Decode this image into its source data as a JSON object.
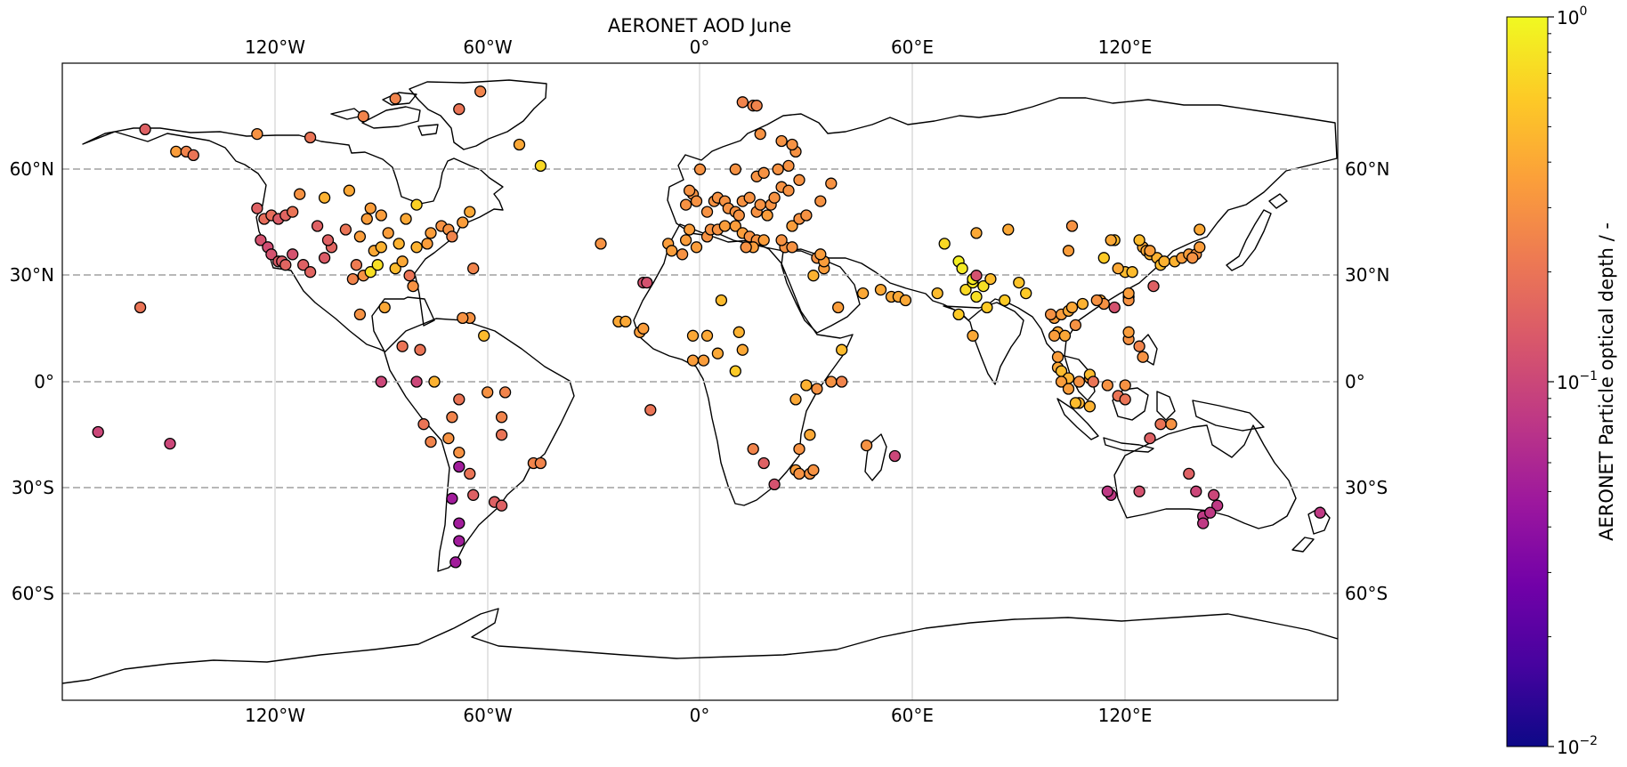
{
  "chart_data": {
    "type": "scatter",
    "title": "AERONET AOD June",
    "projection": "PlateCarree",
    "extent": {
      "lon": [
        -180,
        180
      ],
      "lat": [
        -90,
        90
      ]
    },
    "x_ticks": [
      "120°W",
      "60°W",
      "0°",
      "60°E",
      "120°E"
    ],
    "x_tick_values": [
      -120,
      -60,
      0,
      60,
      120
    ],
    "y_ticks": [
      "60°N",
      "30°N",
      "0°",
      "30°S",
      "60°S"
    ],
    "y_tick_values": [
      60,
      30,
      0,
      -30,
      -60
    ],
    "gridlines": {
      "meridians": "solid light grey",
      "parallels": "dashed grey"
    },
    "colorbar": {
      "label": "AERONET Particle optical depth / -",
      "cmap": "plasma",
      "scale": "log",
      "range": [
        0.01,
        1
      ],
      "ticks": [
        {
          "value": 1,
          "base": "10",
          "exp": "0"
        },
        {
          "value": 0.1,
          "base": "10",
          "exp": "−1"
        },
        {
          "value": 0.01,
          "base": "10",
          "exp": "−2"
        }
      ]
    },
    "colormap_stops": [
      "#0d0887",
      "#46039f",
      "#7201a8",
      "#9c179e",
      "#bd3786",
      "#d8576b",
      "#ed7953",
      "#fb9f3a",
      "#fdca26",
      "#f0f921"
    ],
    "stations": [
      [
        -156.6,
        71.3,
        0.15
      ],
      [
        -147.9,
        65,
        0.35
      ],
      [
        -145,
        65,
        0.25
      ],
      [
        -143,
        64,
        0.2
      ],
      [
        -125,
        49,
        0.15
      ],
      [
        -123,
        46,
        0.18
      ],
      [
        -121,
        47,
        0.18
      ],
      [
        -119,
        46,
        0.14
      ],
      [
        -117,
        47,
        0.16
      ],
      [
        -115,
        48,
        0.2
      ],
      [
        -113,
        53,
        0.3
      ],
      [
        -124,
        40,
        0.12
      ],
      [
        -122,
        38,
        0.11
      ],
      [
        -121,
        36,
        0.12
      ],
      [
        -119,
        34,
        0.14
      ],
      [
        -118,
        34,
        0.14
      ],
      [
        -117,
        33,
        0.16
      ],
      [
        -115,
        36,
        0.12
      ],
      [
        -112,
        33,
        0.15
      ],
      [
        -110,
        31,
        0.16
      ],
      [
        -106,
        35,
        0.14
      ],
      [
        -104,
        38,
        0.16
      ],
      [
        -105,
        40,
        0.15
      ],
      [
        -108,
        44,
        0.15
      ],
      [
        -100,
        43,
        0.2
      ],
      [
        -97,
        33,
        0.22
      ],
      [
        -98,
        29,
        0.25
      ],
      [
        -95,
        30,
        0.3
      ],
      [
        -92,
        37,
        0.4
      ],
      [
        -90,
        38,
        0.45
      ],
      [
        -88,
        42,
        0.35
      ],
      [
        -85,
        39,
        0.45
      ],
      [
        -86,
        32,
        0.5
      ],
      [
        -84,
        34,
        0.4
      ],
      [
        -80,
        38,
        0.45
      ],
      [
        -77,
        39,
        0.35
      ],
      [
        -76,
        42,
        0.35
      ],
      [
        -73,
        44,
        0.3
      ],
      [
        -71,
        43,
        0.3
      ],
      [
        -70,
        41,
        0.25
      ],
      [
        -81,
        27,
        0.3
      ],
      [
        -82,
        30,
        0.2
      ],
      [
        -93,
        31,
        0.75
      ],
      [
        -91,
        33,
        0.75
      ],
      [
        -96,
        41,
        0.35
      ],
      [
        -94,
        46,
        0.35
      ],
      [
        -90,
        47,
        0.35
      ],
      [
        -83,
        46,
        0.4
      ],
      [
        -80,
        50,
        0.65
      ],
      [
        -106,
        52,
        0.45
      ],
      [
        -99,
        54,
        0.4
      ],
      [
        -93,
        49,
        0.35
      ],
      [
        -67,
        45,
        0.35
      ],
      [
        -65,
        48,
        0.4
      ],
      [
        -96,
        19,
        0.3
      ],
      [
        -89,
        21,
        0.4
      ],
      [
        -125,
        70,
        0.3
      ],
      [
        -110,
        69,
        0.2
      ],
      [
        -95,
        75,
        0.25
      ],
      [
        -86,
        80,
        0.25
      ],
      [
        -62,
        82,
        0.25
      ],
      [
        -68,
        77,
        0.2
      ],
      [
        -51,
        67,
        0.4
      ],
      [
        -45,
        61,
        0.7
      ],
      [
        -158,
        21,
        0.2
      ],
      [
        -149.6,
        -17.5,
        0.1
      ],
      [
        -169.9,
        -14.2,
        0.1
      ],
      [
        -84,
        10,
        0.2
      ],
      [
        -79,
        9,
        0.2
      ],
      [
        -75,
        0,
        0.45
      ],
      [
        -80,
        0,
        0.1
      ],
      [
        -90,
        0,
        0.1
      ],
      [
        -78,
        -12,
        0.2
      ],
      [
        -76,
        -17,
        0.25
      ],
      [
        -71,
        -16,
        0.3
      ],
      [
        -68,
        -20,
        0.3
      ],
      [
        -68,
        -24,
        0.05
      ],
      [
        -70,
        -33,
        0.05
      ],
      [
        -68,
        -40,
        0.05
      ],
      [
        -68,
        -45,
        0.05
      ],
      [
        -69,
        -51,
        0.05
      ],
      [
        -65,
        -26,
        0.2
      ],
      [
        -64,
        -32,
        0.15
      ],
      [
        -58,
        -34,
        0.15
      ],
      [
        -56,
        -35,
        0.15
      ],
      [
        -60,
        -3,
        0.3
      ],
      [
        -55,
        -3,
        0.25
      ],
      [
        -56,
        -10,
        0.25
      ],
      [
        -56,
        -15,
        0.2
      ],
      [
        -70,
        -10,
        0.25
      ],
      [
        -68,
        -5,
        0.2
      ],
      [
        -47,
        -23,
        0.25
      ],
      [
        -45,
        -23,
        0.25
      ],
      [
        -61,
        13,
        0.5
      ],
      [
        -65,
        18,
        0.3
      ],
      [
        -67,
        18,
        0.3
      ],
      [
        -64,
        32,
        0.25
      ],
      [
        -28,
        39,
        0.3
      ],
      [
        -16,
        28,
        0.12
      ],
      [
        -15,
        28,
        0.12
      ],
      [
        -17,
        14,
        0.35
      ],
      [
        -16,
        15,
        0.35
      ],
      [
        -23,
        17,
        0.4
      ],
      [
        -21,
        17,
        0.4
      ],
      [
        -14,
        -8,
        0.2
      ],
      [
        -9,
        39,
        0.35
      ],
      [
        -8,
        37,
        0.35
      ],
      [
        -5,
        36,
        0.3
      ],
      [
        -4,
        40,
        0.35
      ],
      [
        -3,
        43,
        0.35
      ],
      [
        -1,
        38,
        0.35
      ],
      [
        2,
        41,
        0.3
      ],
      [
        3,
        43,
        0.3
      ],
      [
        5,
        43,
        0.3
      ],
      [
        7,
        44,
        0.35
      ],
      [
        10,
        44,
        0.35
      ],
      [
        12,
        42,
        0.35
      ],
      [
        14,
        41,
        0.3
      ],
      [
        16,
        40,
        0.3
      ],
      [
        18,
        40,
        0.35
      ],
      [
        15,
        38,
        0.35
      ],
      [
        13,
        38,
        0.3
      ],
      [
        2,
        48,
        0.3
      ],
      [
        4,
        51,
        0.3
      ],
      [
        5,
        52,
        0.3
      ],
      [
        7,
        51,
        0.3
      ],
      [
        8,
        49,
        0.3
      ],
      [
        10,
        48,
        0.3
      ],
      [
        11,
        47,
        0.3
      ],
      [
        12,
        51,
        0.3
      ],
      [
        14,
        52,
        0.3
      ],
      [
        16,
        48,
        0.3
      ],
      [
        17,
        50,
        0.3
      ],
      [
        19,
        47,
        0.35
      ],
      [
        20,
        50,
        0.3
      ],
      [
        21,
        52,
        0.3
      ],
      [
        23,
        55,
        0.3
      ],
      [
        25,
        54,
        0.3
      ],
      [
        26,
        44,
        0.35
      ],
      [
        28,
        46,
        0.3
      ],
      [
        24,
        38,
        0.3
      ],
      [
        23,
        40,
        0.3
      ],
      [
        26,
        38,
        0.3
      ],
      [
        -2,
        53,
        0.3
      ],
      [
        -1,
        51,
        0.3
      ],
      [
        -3,
        54,
        0.3
      ],
      [
        -4,
        50,
        0.3
      ],
      [
        0,
        60,
        0.3
      ],
      [
        10,
        60,
        0.3
      ],
      [
        16,
        58,
        0.3
      ],
      [
        18,
        59,
        0.3
      ],
      [
        22,
        60,
        0.3
      ],
      [
        25,
        61,
        0.3
      ],
      [
        27,
        65,
        0.3
      ],
      [
        26,
        67,
        0.3
      ],
      [
        23,
        68,
        0.3
      ],
      [
        15,
        78,
        0.25
      ],
      [
        16,
        78,
        0.25
      ],
      [
        12,
        79,
        0.25
      ],
      [
        17,
        70,
        0.3
      ],
      [
        28,
        57,
        0.3
      ],
      [
        30,
        47,
        0.3
      ],
      [
        37,
        56,
        0.3
      ],
      [
        34,
        51,
        0.3
      ],
      [
        33,
        35,
        0.3
      ],
      [
        35,
        32,
        0.35
      ],
      [
        35,
        34,
        0.35
      ],
      [
        34,
        36,
        0.35
      ],
      [
        32,
        30,
        0.45
      ],
      [
        39,
        21,
        0.35
      ],
      [
        46,
        25,
        0.4
      ],
      [
        51,
        26,
        0.4
      ],
      [
        54,
        24,
        0.4
      ],
      [
        56,
        24,
        0.4
      ],
      [
        58,
        23,
        0.4
      ],
      [
        67,
        25,
        0.5
      ],
      [
        -2,
        13,
        0.4
      ],
      [
        2,
        13,
        0.4
      ],
      [
        5,
        8,
        0.4
      ],
      [
        6,
        23,
        0.5
      ],
      [
        11,
        14,
        0.45
      ],
      [
        12,
        9,
        0.4
      ],
      [
        10,
        3,
        0.6
      ],
      [
        1,
        6,
        0.35
      ],
      [
        -2,
        6,
        0.35
      ],
      [
        30,
        -1,
        0.45
      ],
      [
        27,
        -5,
        0.4
      ],
      [
        31,
        -15,
        0.4
      ],
      [
        28,
        -19,
        0.3
      ],
      [
        15,
        -19,
        0.25
      ],
      [
        18,
        -23,
        0.15
      ],
      [
        21,
        -29,
        0.12
      ],
      [
        27,
        -25,
        0.35
      ],
      [
        28,
        -26,
        0.3
      ],
      [
        31,
        -26,
        0.3
      ],
      [
        32,
        -25,
        0.3
      ],
      [
        33,
        -2,
        0.3
      ],
      [
        37,
        0,
        0.3
      ],
      [
        40,
        9,
        0.5
      ],
      [
        40,
        0,
        0.25
      ],
      [
        47,
        -18,
        0.3
      ],
      [
        55,
        -21,
        0.1
      ],
      [
        69,
        39,
        0.7
      ],
      [
        73,
        34,
        0.9
      ],
      [
        74,
        32,
        0.85
      ],
      [
        75,
        26,
        0.7
      ],
      [
        77,
        28,
        0.8
      ],
      [
        77,
        29,
        0.85
      ],
      [
        78,
        24,
        0.75
      ],
      [
        80,
        27,
        0.75
      ],
      [
        82,
        29,
        0.5
      ],
      [
        81,
        21,
        0.6
      ],
      [
        86,
        23,
        0.6
      ],
      [
        90,
        28,
        0.55
      ],
      [
        92,
        25,
        0.6
      ],
      [
        77,
        13,
        0.4
      ],
      [
        73,
        19,
        0.6
      ],
      [
        78,
        30,
        0.12
      ],
      [
        78,
        42,
        0.4
      ],
      [
        87,
        43,
        0.4
      ],
      [
        104,
        37,
        0.35
      ],
      [
        105,
        44,
        0.3
      ],
      [
        101,
        14,
        0.4
      ],
      [
        100,
        18,
        0.35
      ],
      [
        99,
        19,
        0.3
      ],
      [
        102,
        19,
        0.35
      ],
      [
        104,
        20,
        0.4
      ],
      [
        106,
        16,
        0.3
      ],
      [
        105,
        21,
        0.4
      ],
      [
        108,
        22,
        0.45
      ],
      [
        113,
        23,
        0.4
      ],
      [
        114,
        22,
        0.3
      ],
      [
        117,
        21,
        0.12
      ],
      [
        121,
        24,
        0.3
      ],
      [
        121,
        23,
        0.3
      ],
      [
        121,
        25,
        0.35
      ],
      [
        125,
        38,
        0.4
      ],
      [
        126,
        37,
        0.4
      ],
      [
        127,
        36,
        0.45
      ],
      [
        129,
        35,
        0.45
      ],
      [
        130,
        33,
        0.5
      ],
      [
        131,
        34,
        0.45
      ],
      [
        134,
        34,
        0.45
      ],
      [
        136,
        35,
        0.35
      ],
      [
        138,
        36,
        0.35
      ],
      [
        140,
        36,
        0.3
      ],
      [
        141,
        38,
        0.35
      ],
      [
        141,
        43,
        0.4
      ],
      [
        139,
        35,
        0.3
      ],
      [
        127,
        37,
        0.35
      ],
      [
        124,
        40,
        0.5
      ],
      [
        117,
        40,
        0.5
      ],
      [
        116,
        40,
        0.4
      ],
      [
        114,
        35,
        0.6
      ],
      [
        112,
        23,
        0.3
      ],
      [
        120,
        31,
        0.5
      ],
      [
        122,
        31,
        0.5
      ],
      [
        118,
        32,
        0.4
      ],
      [
        121,
        12,
        0.3
      ],
      [
        125,
        7,
        0.3
      ],
      [
        124,
        10,
        0.25
      ],
      [
        121,
        14,
        0.35
      ],
      [
        128,
        27,
        0.15
      ],
      [
        100,
        13,
        0.35
      ],
      [
        103,
        13,
        0.4
      ],
      [
        101,
        7,
        0.35
      ],
      [
        101,
        4,
        0.4
      ],
      [
        102,
        3,
        0.5
      ],
      [
        104,
        1,
        0.45
      ],
      [
        102,
        0,
        0.35
      ],
      [
        104,
        -2,
        0.35
      ],
      [
        107,
        -6,
        0.45
      ],
      [
        110,
        -7,
        0.45
      ],
      [
        106,
        -6,
        0.5
      ],
      [
        110,
        1,
        0.35
      ],
      [
        110,
        2,
        0.5
      ],
      [
        107,
        0,
        0.3
      ],
      [
        111,
        0,
        0.2
      ],
      [
        115,
        -1,
        0.3
      ],
      [
        118,
        -4,
        0.2
      ],
      [
        120,
        -5,
        0.2
      ],
      [
        120,
        -1,
        0.3
      ],
      [
        130,
        -12,
        0.2
      ],
      [
        133,
        -12,
        0.3
      ],
      [
        127,
        -16,
        0.15
      ],
      [
        116,
        -32,
        0.08
      ],
      [
        115,
        -31,
        0.08
      ],
      [
        124,
        -31,
        0.12
      ],
      [
        138,
        -26,
        0.15
      ],
      [
        140,
        -31,
        0.1
      ],
      [
        145,
        -32,
        0.1
      ],
      [
        146,
        -35,
        0.08
      ],
      [
        142,
        -38,
        0.08
      ],
      [
        142,
        -40,
        0.08
      ],
      [
        144,
        -37,
        0.08
      ],
      [
        175,
        -37,
        0.08
      ]
    ]
  }
}
